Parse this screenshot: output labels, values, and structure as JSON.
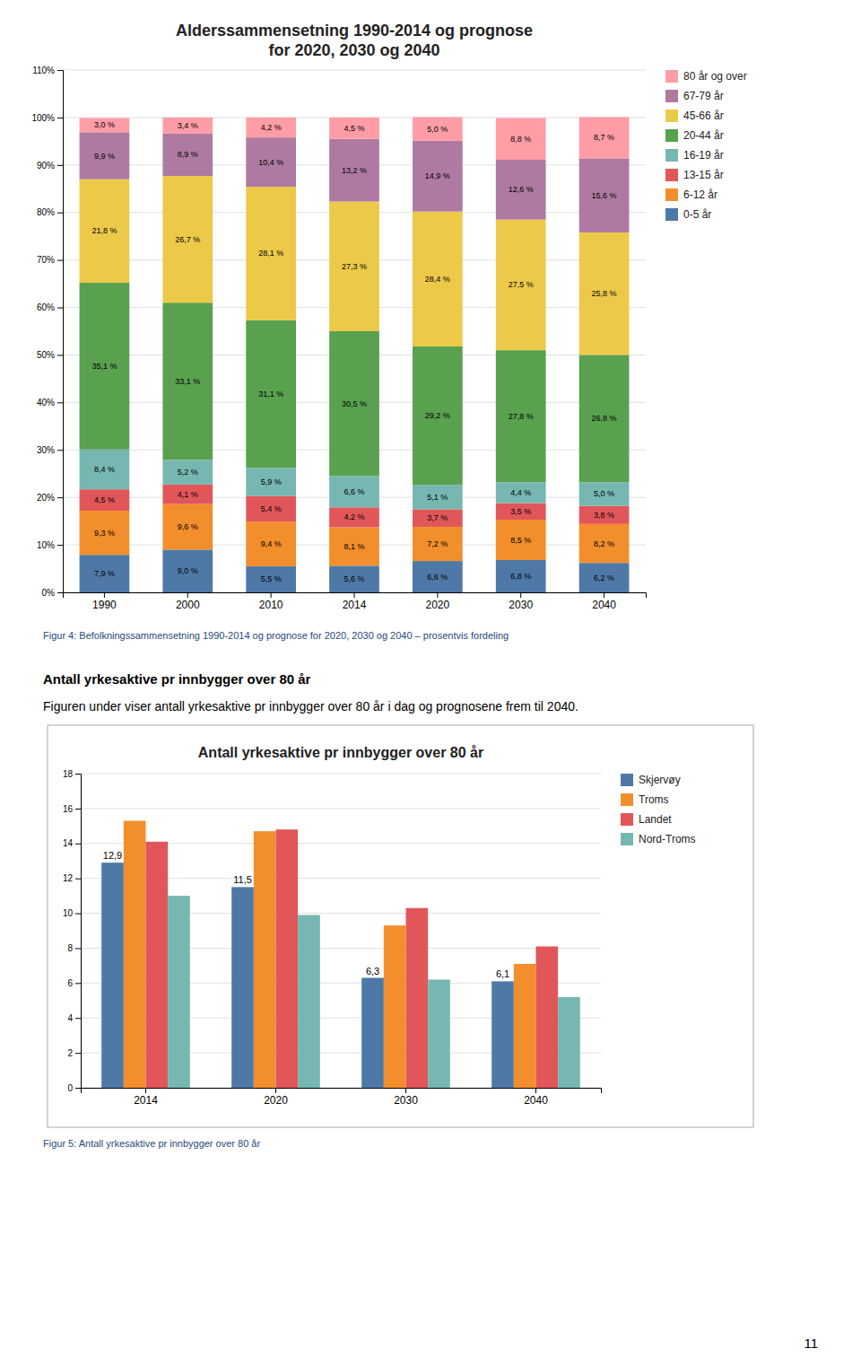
{
  "chart_data": [
    {
      "type": "bar",
      "stacked": true,
      "title": "Alderssammensetning 1990-2014 og prognose\nfor 2020, 2030 og 2040",
      "caption": "Figur 4: Befolkningssammensetning 1990-2014 og prognose for 2020, 2030 og 2040 – prosentvis fordeling",
      "categories": [
        "1990",
        "2000",
        "2010",
        "2014",
        "2020",
        "2030",
        "2040"
      ],
      "series": [
        {
          "name": "0-5 år",
          "values": [
            7.9,
            9.0,
            5.5,
            5.6,
            6.6,
            6.8,
            6.2
          ],
          "value_labels": [
            "7,9 %",
            "9,0 %",
            "5,5 %",
            "5,6 %",
            "6,6 %",
            "6,8 %",
            "6,2 %"
          ]
        },
        {
          "name": "6-12 år",
          "values": [
            9.3,
            9.6,
            9.4,
            8.1,
            7.2,
            8.5,
            8.2
          ],
          "value_labels": [
            "9,3 %",
            "9,6 %",
            "9,4 %",
            "8,1 %",
            "7,2 %",
            "8,5 %",
            "8,2 %"
          ]
        },
        {
          "name": "13-15 år",
          "values": [
            4.5,
            4.1,
            5.4,
            4.2,
            3.7,
            3.5,
            3.8
          ],
          "value_labels": [
            "4,5 %",
            "4,1 %",
            "5,4 %",
            "4,2 %",
            "3,7 %",
            "3,5 %",
            "3,8 %"
          ]
        },
        {
          "name": "16-19 år",
          "values": [
            8.4,
            5.2,
            5.9,
            6.6,
            5.1,
            4.4,
            5.0
          ],
          "value_labels": [
            "8,4 %",
            "5,2 %",
            "5,9 %",
            "6,6 %",
            "5,1 %",
            "4,4 %",
            "5,0 %"
          ]
        },
        {
          "name": "20-44 år",
          "values": [
            35.1,
            33.1,
            31.1,
            30.5,
            29.2,
            27.8,
            26.8
          ],
          "value_labels": [
            "35,1 %",
            "33,1 %",
            "31,1 %",
            "30,5 %",
            "29,2 %",
            "27,8 %",
            "26,8 %"
          ]
        },
        {
          "name": "45-66 år",
          "values": [
            21.8,
            26.7,
            28.1,
            27.3,
            28.4,
            27.5,
            25.8
          ],
          "value_labels": [
            "21,8 %",
            "26,7 %",
            "28,1 %",
            "27,3 %",
            "28,4 %",
            "27,5 %",
            "25,8 %"
          ]
        },
        {
          "name": "67-79 år",
          "values": [
            9.9,
            8.9,
            10.4,
            13.2,
            14.9,
            12.6,
            15.6
          ],
          "value_labels": [
            "9,9 %",
            "8,9 %",
            "10,4 %",
            "13,2 %",
            "14,9 %",
            "12,6 %",
            "15,6 %"
          ]
        },
        {
          "name": "80 år og over",
          "values": [
            3.0,
            3.4,
            4.2,
            4.5,
            5.0,
            8.8,
            8.7
          ],
          "value_labels": [
            "3,0 %",
            "3,4 %",
            "4,2 %",
            "4,5 %",
            "5,0 %",
            "8,8 %",
            "8,7 %"
          ]
        }
      ],
      "data_labels": true,
      "ylim": [
        0,
        110
      ],
      "yticks": [
        {
          "value": 0,
          "label": "0%"
        },
        {
          "value": 10,
          "label": "10%"
        },
        {
          "value": 20,
          "label": "20%"
        },
        {
          "value": 30,
          "label": "30%"
        },
        {
          "value": 40,
          "label": "40%"
        },
        {
          "value": 50,
          "label": "50%"
        },
        {
          "value": 60,
          "label": "60%"
        },
        {
          "value": 70,
          "label": "70%"
        },
        {
          "value": 80,
          "label": "80%"
        },
        {
          "value": 90,
          "label": "90%"
        },
        {
          "value": 100,
          "label": "100%"
        },
        {
          "value": 110,
          "label": "110%"
        }
      ],
      "grid": true,
      "legend": "right"
    },
    {
      "type": "bar",
      "title": "Antall yrkesaktive pr innbygger over 80 år",
      "caption": "Figur 5: Antall yrkesaktive pr innbygger over 80 år",
      "categories": [
        "2014",
        "2020",
        "2030",
        "2040"
      ],
      "series": [
        {
          "name": "Skjervøy",
          "values": [
            12.9,
            11.5,
            6.3,
            6.1
          ],
          "value_labels": [
            "12,9",
            "11,5",
            "6,3",
            "6,1"
          ],
          "data_labels": true
        },
        {
          "name": "Troms",
          "values": [
            15.3,
            14.7,
            9.3,
            7.1
          ]
        },
        {
          "name": "Landet",
          "values": [
            14.1,
            14.8,
            10.3,
            8.1
          ]
        },
        {
          "name": "Nord-Troms",
          "values": [
            11.0,
            9.9,
            6.2,
            5.2
          ]
        }
      ],
      "ylim": [
        0,
        18
      ],
      "yticks": [
        0,
        2,
        4,
        6,
        8,
        10,
        12,
        14,
        16,
        18
      ],
      "grid": true,
      "legend": "right"
    }
  ],
  "heading": "Antall yrkesaktive pr innbygger over 80 år",
  "body": "Figuren under viser antall yrkesaktive pr innbygger over 80 år i dag og prognosene frem til 2040.",
  "page_number": "11"
}
